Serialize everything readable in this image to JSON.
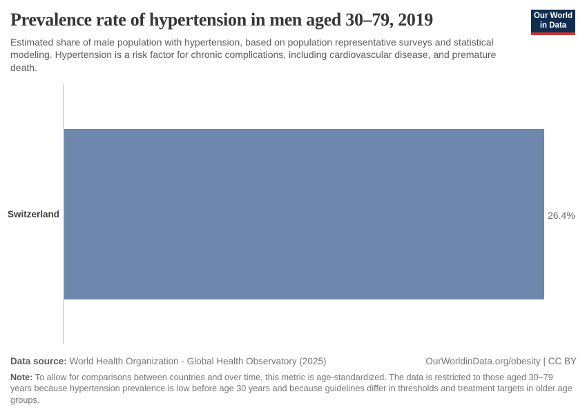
{
  "header": {
    "title": "Prevalence rate of hypertension in men aged 30–79, 2019",
    "subtitle": "Estimated share of male population with hypertension, based on population representative surveys and statistical modeling. Hypertension is a risk factor for chronic complications, including cardiovascular disease, and premature death.",
    "logo": {
      "line1": "Our World",
      "line2": "in Data"
    }
  },
  "chart_data": {
    "type": "bar",
    "orientation": "horizontal",
    "title": "Prevalence rate of hypertension in men aged 30–79, 2019",
    "categories": [
      "Switzerland"
    ],
    "values": [
      26.4
    ],
    "value_labels": [
      "26.4%"
    ],
    "unit": "%",
    "xlabel": "",
    "ylabel": "",
    "xlim": [
      0,
      28.5
    ],
    "grid": false,
    "legend": false,
    "bar_color": "#6e87ad"
  },
  "footer": {
    "data_source_label": "Data source:",
    "data_source_value": " World Health Organization - Global Health Observatory (2025)",
    "attribution": "OurWorldinData.org/obesity | CC BY",
    "note_label": "Note:",
    "note_text": " To allow for comparisons between countries and over time, this metric is age-standardized. The data is restricted to those aged 30–79 years because hypertension prevalence is low before age 30 years and because guidelines differ in thresholds and treatment targets in older age groups."
  },
  "colors": {
    "bar": "#6e87ad",
    "axis_line": "#dadada",
    "logo_background": "#102d50",
    "logo_accent": "#cf352e",
    "title_text": "#363636",
    "subtitle_text": "#5b5b5b",
    "muted_text": "#757575"
  }
}
